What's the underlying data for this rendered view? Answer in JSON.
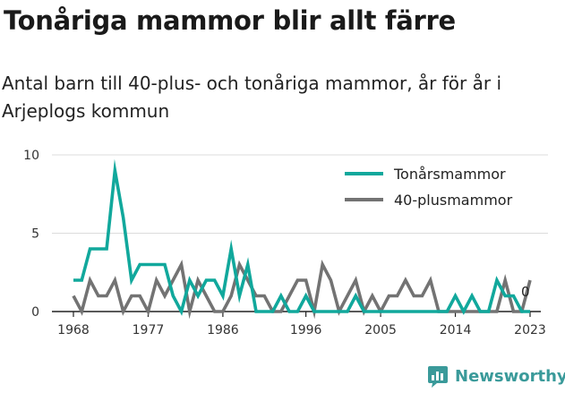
{
  "title": "Tonåriga mammor blir allt färre",
  "subtitle": "Antal barn till 40-plus- och tonåriga mammor, år för år i Arjeplogs kommun",
  "brand": "Newsworthy",
  "colors": {
    "teen": "#11a89c",
    "forty": "#737373",
    "grid": "#dcdcdc",
    "brand": "#3a9a9a"
  },
  "chart_data": {
    "type": "line",
    "x": [
      1968,
      1969,
      1970,
      1971,
      1972,
      1973,
      1974,
      1975,
      1976,
      1977,
      1978,
      1979,
      1980,
      1981,
      1982,
      1983,
      1984,
      1985,
      1986,
      1987,
      1988,
      1989,
      1990,
      1991,
      1992,
      1993,
      1994,
      1995,
      1996,
      1997,
      1998,
      1999,
      2000,
      2001,
      2002,
      2003,
      2004,
      2005,
      2006,
      2007,
      2008,
      2009,
      2010,
      2011,
      2012,
      2013,
      2014,
      2015,
      2016,
      2017,
      2018,
      2019,
      2020,
      2021,
      2022,
      2023
    ],
    "series": [
      {
        "name": "Tonårsmammor",
        "values": [
          2,
          2,
          4,
          4,
          4,
          9,
          6,
          2,
          3,
          3,
          3,
          3,
          1,
          0,
          2,
          1,
          2,
          2,
          1,
          4,
          1,
          3,
          0,
          0,
          0,
          1,
          0,
          0,
          1,
          0,
          0,
          0,
          0,
          0,
          1,
          0,
          0,
          0,
          0,
          0,
          0,
          0,
          0,
          0,
          0,
          0,
          1,
          0,
          1,
          0,
          0,
          2,
          1,
          1,
          0,
          0
        ]
      },
      {
        "name": "40-plusmammor",
        "values": [
          1,
          0,
          2,
          1,
          1,
          2,
          0,
          1,
          1,
          0,
          2,
          1,
          2,
          3,
          0,
          2,
          1,
          0,
          0,
          1,
          3,
          2,
          1,
          1,
          0,
          0,
          1,
          2,
          2,
          0,
          3,
          2,
          0,
          1,
          2,
          0,
          1,
          0,
          1,
          1,
          2,
          1,
          1,
          2,
          0,
          0,
          0,
          0,
          0,
          0,
          0,
          0,
          2,
          0,
          0,
          2
        ]
      }
    ],
    "ylim": [
      0,
      10
    ],
    "yticks": [
      0,
      5,
      10
    ],
    "xticks": [
      1968,
      1977,
      1986,
      1996,
      2005,
      2014,
      2023
    ],
    "end_label": "0",
    "legend": "top-right",
    "grid": true
  }
}
